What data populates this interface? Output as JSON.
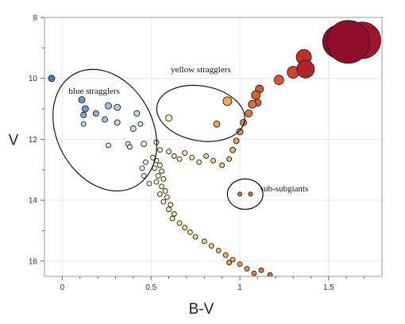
{
  "chart_data": {
    "type": "scatter",
    "title": "",
    "xlabel": "B-V",
    "ylabel": "V",
    "xlim": [
      -0.1,
      1.8
    ],
    "ylim": [
      16.5,
      8.0
    ],
    "y_inverted": true,
    "grid": true,
    "x_ticks": [
      {
        "value": 0,
        "label": "0"
      },
      {
        "value": 0.5,
        "label": "0.5"
      },
      {
        "value": 1.0,
        "label": "1"
      },
      {
        "value": 1.5,
        "label": "1.5"
      }
    ],
    "y_ticks": [
      {
        "value": 8,
        "label": "8"
      },
      {
        "value": 10,
        "label": "10"
      },
      {
        "value": 12,
        "label": "12"
      },
      {
        "value": 14,
        "label": "14"
      },
      {
        "value": 16,
        "label": "16"
      }
    ],
    "annotations": [
      {
        "id": "blue-stragglers",
        "text": "blue stragglers",
        "x": 0.18,
        "y": 10.4,
        "ellipse": {
          "cx": 0.24,
          "cy": 11.7,
          "rx": 0.27,
          "ry": 2.1,
          "rotation": -28
        }
      },
      {
        "id": "yellow-stragglers",
        "text": "yellow stragglers",
        "x": 0.78,
        "y": 9.7,
        "ellipse": {
          "cx": 0.78,
          "cy": 11.15,
          "rx": 0.25,
          "ry": 0.9,
          "rotation": 10
        }
      },
      {
        "id": "sub-subgiants",
        "text": "sub-subgiants",
        "x": 1.25,
        "y": 13.6,
        "ellipse": {
          "cx": 1.03,
          "cy": 13.8,
          "rx": 0.1,
          "ry": 0.5,
          "rotation": 0
        }
      }
    ],
    "series": [
      {
        "points": [
          {
            "x": -0.06,
            "y": 10.0,
            "size": 4,
            "color": "#4a78b8"
          },
          {
            "x": 0.11,
            "y": 10.7,
            "size": 4,
            "color": "#6f98c8"
          },
          {
            "x": 0.13,
            "y": 11.0,
            "size": 4,
            "color": "#6f98c8"
          },
          {
            "x": 0.12,
            "y": 11.2,
            "size": 3.5,
            "color": "#80a8d3"
          },
          {
            "x": 0.19,
            "y": 11.15,
            "size": 3.5,
            "color": "#8fb6da"
          },
          {
            "x": 0.26,
            "y": 10.9,
            "size": 4,
            "color": "#9ec2e2"
          },
          {
            "x": 0.31,
            "y": 10.95,
            "size": 4,
            "color": "#a6c8e5"
          },
          {
            "x": 0.24,
            "y": 11.35,
            "size": 3.5,
            "color": "#a0c4e3"
          },
          {
            "x": 0.12,
            "y": 11.5,
            "size": 3,
            "color": "#b5d4ec"
          },
          {
            "x": 0.31,
            "y": 11.45,
            "size": 3.5,
            "color": "#b8d6ee"
          },
          {
            "x": 0.42,
            "y": 11.15,
            "size": 3.5,
            "color": "#c3dcf0"
          },
          {
            "x": 0.44,
            "y": 11.5,
            "size": 3,
            "color": "#d0e3f3"
          },
          {
            "x": 0.4,
            "y": 11.65,
            "size": 3.5,
            "color": "#cfe3f4"
          },
          {
            "x": 0.26,
            "y": 12.2,
            "size": 3,
            "color": "#dcebf5"
          },
          {
            "x": 0.37,
            "y": 12.15,
            "size": 3,
            "color": "#dbeaf6"
          },
          {
            "x": 0.38,
            "y": 12.25,
            "size": 3,
            "color": "#dbeaf6"
          },
          {
            "x": 0.46,
            "y": 12.15,
            "size": 3.5,
            "color": "#e2eef6"
          },
          {
            "x": 0.47,
            "y": 12.75,
            "size": 3,
            "color": "#e8f1f6"
          },
          {
            "x": 0.45,
            "y": 12.95,
            "size": 3,
            "color": "#e8f1f6"
          },
          {
            "x": 0.46,
            "y": 13.2,
            "size": 3,
            "color": "#eef4f5"
          },
          {
            "x": 0.49,
            "y": 13.45,
            "size": 3,
            "color": "#f2f5ee"
          },
          {
            "x": 0.53,
            "y": 12.1,
            "size": 3,
            "color": "#fcf5c8"
          },
          {
            "x": 0.55,
            "y": 12.35,
            "size": 3,
            "color": "#fcf2c0"
          },
          {
            "x": 0.51,
            "y": 12.6,
            "size": 3,
            "color": "#fcf7cc"
          },
          {
            "x": 0.53,
            "y": 12.7,
            "size": 3,
            "color": "#fcf6c8"
          },
          {
            "x": 0.55,
            "y": 12.85,
            "size": 3,
            "color": "#fcf4c2"
          },
          {
            "x": 0.52,
            "y": 12.95,
            "size": 3,
            "color": "#fcf6c7"
          },
          {
            "x": 0.56,
            "y": 13.05,
            "size": 3,
            "color": "#fcf3c0"
          },
          {
            "x": 0.54,
            "y": 13.2,
            "size": 3,
            "color": "#fcf4c3"
          },
          {
            "x": 0.57,
            "y": 13.3,
            "size": 3,
            "color": "#fbf1bd"
          },
          {
            "x": 0.53,
            "y": 13.4,
            "size": 3,
            "color": "#fcf4c4"
          },
          {
            "x": 0.56,
            "y": 13.55,
            "size": 3,
            "color": "#fbf1bd"
          },
          {
            "x": 0.58,
            "y": 13.7,
            "size": 3,
            "color": "#fbeeb6"
          },
          {
            "x": 0.55,
            "y": 13.8,
            "size": 3,
            "color": "#fbf0bb"
          },
          {
            "x": 0.59,
            "y": 13.9,
            "size": 3,
            "color": "#fbeeb4"
          },
          {
            "x": 0.57,
            "y": 14.05,
            "size": 3,
            "color": "#fbefb7"
          },
          {
            "x": 0.61,
            "y": 14.15,
            "size": 3,
            "color": "#fbebad"
          },
          {
            "x": 0.6,
            "y": 14.3,
            "size": 3,
            "color": "#fbecaf"
          },
          {
            "x": 0.63,
            "y": 14.45,
            "size": 3,
            "color": "#fae8a8"
          },
          {
            "x": 0.62,
            "y": 14.6,
            "size": 3,
            "color": "#fae9a9"
          },
          {
            "x": 0.66,
            "y": 14.75,
            "size": 3,
            "color": "#fae4a1"
          },
          {
            "x": 0.69,
            "y": 14.9,
            "size": 3,
            "color": "#f9e09a"
          },
          {
            "x": 0.72,
            "y": 15.05,
            "size": 3,
            "color": "#f8dc94"
          },
          {
            "x": 0.75,
            "y": 15.2,
            "size": 3,
            "color": "#f7d58b"
          },
          {
            "x": 0.8,
            "y": 15.35,
            "size": 3,
            "color": "#f6ce83"
          },
          {
            "x": 0.84,
            "y": 15.5,
            "size": 3,
            "color": "#f5c67b"
          },
          {
            "x": 0.88,
            "y": 15.65,
            "size": 3,
            "color": "#f3bd72"
          },
          {
            "x": 0.92,
            "y": 15.8,
            "size": 3,
            "color": "#f2b36a"
          },
          {
            "x": 0.96,
            "y": 15.95,
            "size": 3,
            "color": "#f0aa63"
          },
          {
            "x": 1.0,
            "y": 16.1,
            "size": 3,
            "color": "#ec9c5a"
          },
          {
            "x": 1.04,
            "y": 16.25,
            "size": 3,
            "color": "#e98f54"
          },
          {
            "x": 1.08,
            "y": 16.4,
            "size": 3,
            "color": "#e4834f"
          },
          {
            "x": 0.94,
            "y": 16.05,
            "size": 3,
            "color": "#ef9f5f"
          },
          {
            "x": 1.12,
            "y": 16.3,
            "size": 3,
            "color": "#df784a"
          },
          {
            "x": 1.17,
            "y": 16.45,
            "size": 3,
            "color": "#d96b45"
          },
          {
            "x": 0.6,
            "y": 12.4,
            "size": 3,
            "color": "#fcf2bf"
          },
          {
            "x": 0.63,
            "y": 12.55,
            "size": 3,
            "color": "#fbefb9"
          },
          {
            "x": 0.66,
            "y": 12.65,
            "size": 3,
            "color": "#fbecb4"
          },
          {
            "x": 0.69,
            "y": 12.45,
            "size": 3,
            "color": "#fae9ae"
          },
          {
            "x": 0.73,
            "y": 12.6,
            "size": 3,
            "color": "#fae4a6"
          },
          {
            "x": 0.77,
            "y": 12.75,
            "size": 3,
            "color": "#f9df9d"
          },
          {
            "x": 0.81,
            "y": 12.55,
            "size": 3,
            "color": "#f8d894"
          },
          {
            "x": 0.85,
            "y": 12.7,
            "size": 3,
            "color": "#f7d08a"
          },
          {
            "x": 0.9,
            "y": 12.85,
            "size": 3,
            "color": "#f5c47e"
          },
          {
            "x": 0.94,
            "y": 12.65,
            "size": 3,
            "color": "#f3b872"
          },
          {
            "x": 0.96,
            "y": 12.35,
            "size": 3.5,
            "color": "#f1ad67"
          },
          {
            "x": 0.98,
            "y": 12.05,
            "size": 3.5,
            "color": "#ee9f5e"
          },
          {
            "x": 1.0,
            "y": 11.75,
            "size": 4,
            "color": "#ea8f53"
          },
          {
            "x": 1.02,
            "y": 11.45,
            "size": 4,
            "color": "#e58049"
          },
          {
            "x": 1.05,
            "y": 11.15,
            "size": 4.5,
            "color": "#e07443"
          },
          {
            "x": 1.07,
            "y": 10.85,
            "size": 5,
            "color": "#dc6a3e"
          },
          {
            "x": 1.09,
            "y": 10.55,
            "size": 5.5,
            "color": "#d75f39"
          },
          {
            "x": 1.11,
            "y": 10.35,
            "size": 5,
            "color": "#d35836"
          },
          {
            "x": 1.1,
            "y": 10.8,
            "size": 4.5,
            "color": "#d65e38"
          },
          {
            "x": 0.6,
            "y": 11.3,
            "size": 4,
            "color": "#fcf2b5"
          },
          {
            "x": 0.93,
            "y": 10.75,
            "size": 5.5,
            "color": "#f0a85d"
          },
          {
            "x": 0.87,
            "y": 11.5,
            "size": 4,
            "color": "#eca15b"
          },
          {
            "x": 1.0,
            "y": 13.8,
            "size": 2.6,
            "color": "#e06b3c"
          },
          {
            "x": 1.06,
            "y": 13.8,
            "size": 2.6,
            "color": "#e06b3c"
          },
          {
            "x": 1.22,
            "y": 10.05,
            "size": 6,
            "color": "#d95637"
          },
          {
            "x": 1.3,
            "y": 9.8,
            "size": 7.5,
            "color": "#cd4430"
          },
          {
            "x": 1.36,
            "y": 9.3,
            "size": 9.5,
            "color": "#bd302b"
          },
          {
            "x": 1.37,
            "y": 9.7,
            "size": 11,
            "color": "#b02628"
          },
          {
            "x": 1.61,
            "y": 8.8,
            "size": 27,
            "color": "#8f0f2b"
          },
          {
            "x": 1.69,
            "y": 8.75,
            "size": 23,
            "color": "#a0132e"
          },
          {
            "x": 1.56,
            "y": 8.8,
            "size": 21,
            "color": "#870b2a"
          }
        ]
      }
    ]
  }
}
